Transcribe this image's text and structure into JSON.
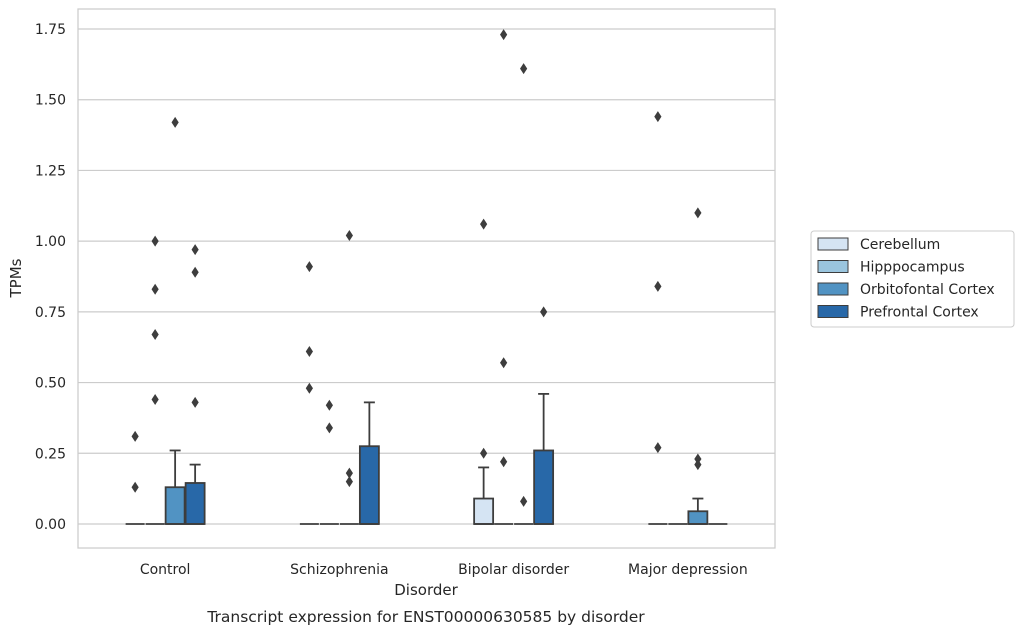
{
  "chart_data": {
    "type": "box",
    "caption": "Transcript expression for ENST00000630585 by disorder",
    "xlabel": "Disorder",
    "ylabel": "TPMs",
    "ylim": [
      -0.085,
      1.82
    ],
    "yticks": [
      0.0,
      0.25,
      0.5,
      0.75,
      1.0,
      1.25,
      1.5,
      1.75
    ],
    "ytick_labels": [
      "0.00",
      "0.25",
      "0.50",
      "0.75",
      "1.00",
      "1.25",
      "1.50",
      "1.75"
    ],
    "grid": "horizontal",
    "legend_position": "outside-right",
    "categories": [
      "Control",
      "Schizophrenia",
      "Bipolar disorder",
      "Major depression"
    ],
    "series": [
      {
        "name": "Cerebellum",
        "color": "#d5e4f3",
        "boxes": [
          {
            "q1": 0,
            "median": 0,
            "q3": 0,
            "whislo": 0,
            "whishi": 0,
            "fliers": [
              0.13,
              0.31
            ]
          },
          {
            "q1": 0,
            "median": 0,
            "q3": 0,
            "whislo": 0,
            "whishi": 0,
            "fliers": [
              0.48,
              0.61,
              0.91
            ]
          },
          {
            "q1": 0,
            "median": 0,
            "q3": 0.09,
            "whislo": 0,
            "whishi": 0.2,
            "fliers": [
              0.25,
              1.06
            ]
          },
          {
            "q1": 0,
            "median": 0,
            "q3": 0,
            "whislo": 0,
            "whishi": 0,
            "fliers": [
              0.27,
              0.84,
              1.44
            ]
          }
        ]
      },
      {
        "name": "Hipppocampus",
        "color": "#9ac5de",
        "boxes": [
          {
            "q1": 0,
            "median": 0,
            "q3": 0,
            "whislo": 0,
            "whishi": 0,
            "fliers": [
              0.44,
              0.67,
              0.83,
              1.0
            ]
          },
          {
            "q1": 0,
            "median": 0,
            "q3": 0,
            "whislo": 0,
            "whishi": 0,
            "fliers": [
              0.34,
              0.42
            ]
          },
          {
            "q1": 0,
            "median": 0,
            "q3": 0,
            "whislo": 0,
            "whishi": 0,
            "fliers": [
              0.22,
              0.57,
              1.73
            ]
          },
          {
            "q1": 0,
            "median": 0,
            "q3": 0,
            "whislo": 0,
            "whishi": 0,
            "fliers": []
          }
        ]
      },
      {
        "name": "Orbitofontal Cortex",
        "color": "#5193c3",
        "boxes": [
          {
            "q1": 0,
            "median": 0,
            "q3": 0.13,
            "whislo": 0,
            "whishi": 0.26,
            "fliers": [
              1.42
            ]
          },
          {
            "q1": 0,
            "median": 0,
            "q3": 0,
            "whislo": 0,
            "whishi": 0,
            "fliers": [
              0.15,
              0.18,
              1.02
            ]
          },
          {
            "q1": 0,
            "median": 0,
            "q3": 0,
            "whislo": 0,
            "whishi": 0,
            "fliers": [
              0.08,
              1.61
            ]
          },
          {
            "q1": 0,
            "median": 0,
            "q3": 0.045,
            "whislo": 0,
            "whishi": 0.09,
            "fliers": [
              0.21,
              0.23,
              1.1
            ]
          }
        ]
      },
      {
        "name": "Prefrontal Cortex",
        "color": "#2868a8",
        "boxes": [
          {
            "q1": 0,
            "median": 0,
            "q3": 0.145,
            "whislo": 0,
            "whishi": 0.21,
            "fliers": [
              0.43,
              0.89,
              0.97
            ]
          },
          {
            "q1": 0,
            "median": 0,
            "q3": 0.275,
            "whislo": 0,
            "whishi": 0.43,
            "fliers": []
          },
          {
            "q1": 0,
            "median": 0,
            "q3": 0.26,
            "whislo": 0,
            "whishi": 0.46,
            "fliers": [
              0.75
            ]
          },
          {
            "q1": 0,
            "median": 0,
            "q3": 0,
            "whislo": 0,
            "whishi": 0,
            "fliers": []
          }
        ]
      }
    ]
  }
}
